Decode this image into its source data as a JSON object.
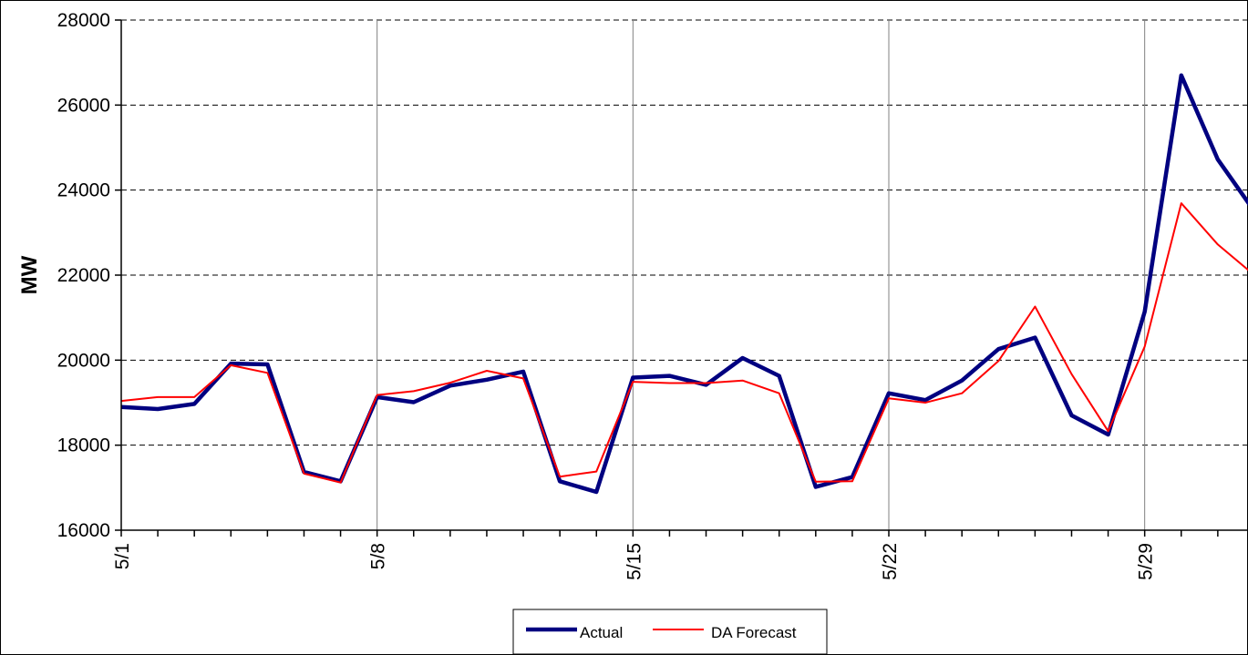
{
  "chart_data": {
    "type": "line",
    "title": "",
    "xlabel": "",
    "ylabel": "MW",
    "ylim": [
      16000,
      28000
    ],
    "y_ticks": [
      16000,
      18000,
      20000,
      22000,
      24000,
      26000,
      28000
    ],
    "x_tick_labels": [
      "5/1",
      "5/8",
      "5/15",
      "5/22",
      "5/29"
    ],
    "x_tick_days": [
      1,
      8,
      15,
      22,
      29
    ],
    "xlim": [
      1,
      31.5
    ],
    "grid": {
      "y": "dashed",
      "x": "solid",
      "on": true
    },
    "legend_position": "bottom-center",
    "x": [
      1,
      2,
      3,
      4,
      5,
      6,
      7,
      8,
      9,
      10,
      11,
      12,
      13,
      14,
      15,
      16,
      17,
      18,
      19,
      20,
      21,
      22,
      23,
      24,
      25,
      26,
      27,
      28,
      29,
      30,
      31,
      32
    ],
    "series": [
      {
        "name": "Actual",
        "color": "#000080",
        "values": [
          18900,
          18850,
          18970,
          19920,
          19900,
          17370,
          17150,
          19130,
          19010,
          19400,
          19540,
          19730,
          17150,
          16900,
          19590,
          19630,
          19420,
          20050,
          19630,
          17020,
          17250,
          19220,
          19060,
          19520,
          20260,
          20530,
          18700,
          18250,
          21140,
          26700,
          24720,
          23500
        ]
      },
      {
        "name": "DA Forecast",
        "color": "#ff0000",
        "values": [
          19040,
          19130,
          19130,
          19880,
          19700,
          17330,
          17120,
          19180,
          19270,
          19470,
          19750,
          19570,
          17260,
          17380,
          19490,
          19460,
          19460,
          19520,
          19220,
          17140,
          17150,
          19100,
          19000,
          19220,
          19980,
          21260,
          19670,
          18330,
          20320,
          23690,
          22720,
          22000
        ]
      }
    ]
  }
}
